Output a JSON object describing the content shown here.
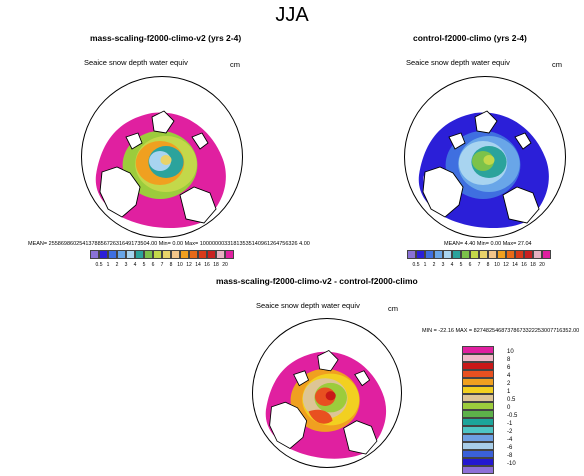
{
  "figure": {
    "season": "JJA"
  },
  "panels": [
    {
      "title": "mass-scaling-f2000-climo-v2 (yrs 2-4)",
      "variable": "Seaice snow depth water equiv",
      "units": "cm",
      "stats": "MEAN= 255869860254137885672631649173504.00  Min=   0.00  Max= 10000000331813535140961264756326 4.00"
    },
    {
      "title": "control-f2000-climo (yrs 2-4)",
      "variable": "Seaice snow depth water equiv",
      "units": "cm",
      "stats": "MEAN=   4.40  Min=   0.00  Max=  27.04"
    },
    {
      "title": "mass-scaling-f2000-climo-v2 - control-f2000-climo",
      "variable": "Seaice snow depth water equiv",
      "units": "cm",
      "stats": "MIN = -22.16  MAX = 82748254687378673322253007716352.00"
    }
  ],
  "colorbar_abs": {
    "labels": [
      "0.5",
      "1",
      "2",
      "3",
      "4",
      "5",
      "6",
      "7",
      "8",
      "10",
      "12",
      "14",
      "16",
      "18",
      "20"
    ],
    "colors": [
      "#8a72d6",
      "#2b1fd8",
      "#3f6fe0",
      "#69a6e8",
      "#a8d4f0",
      "#2ba39c",
      "#7cc24a",
      "#c3d84a",
      "#e8d36a",
      "#f2c58a",
      "#f0a020",
      "#e86a18",
      "#d83a1a",
      "#c82020",
      "#e6b0c0",
      "#e020a0"
    ]
  },
  "colorbar_diff": {
    "labels": [
      "10",
      "8",
      "6",
      "4",
      "2",
      "1",
      "0.5",
      "0",
      "-0.5",
      "-1",
      "-2",
      "-4",
      "-6",
      "-8",
      "-10"
    ],
    "colors": [
      "#e020a0",
      "#f0b8c8",
      "#c81818",
      "#e85020",
      "#f0a020",
      "#f2d020",
      "#ddc596",
      "#9ccc3c",
      "#5db04a",
      "#1ca59b",
      "#4ec5c5",
      "#6e9fe2",
      "#a8cde8",
      "#3a60d8",
      "#2418d0",
      "#8e70d8"
    ]
  },
  "map_colors": {
    "land": "#ffffff",
    "coast": "#000000",
    "p1_fill": "#e020a0",
    "p1_center_colors": [
      "#9ccc3c",
      "#c3d84a",
      "#f0a020",
      "#2ba39c",
      "#a8d4f0",
      "#e8d36a"
    ],
    "p2_colors": [
      "#8a72d6",
      "#2b1fd8",
      "#3f6fe0",
      "#69a6e8",
      "#a8d4f0",
      "#2ba39c",
      "#7cc24a",
      "#c3d84a",
      "#e8d36a",
      "#f2c58a"
    ],
    "p3_colors": [
      "#e020a0",
      "#f0a020",
      "#f2d020",
      "#ddc596",
      "#9ccc3c",
      "#e85020",
      "#c81818"
    ]
  }
}
